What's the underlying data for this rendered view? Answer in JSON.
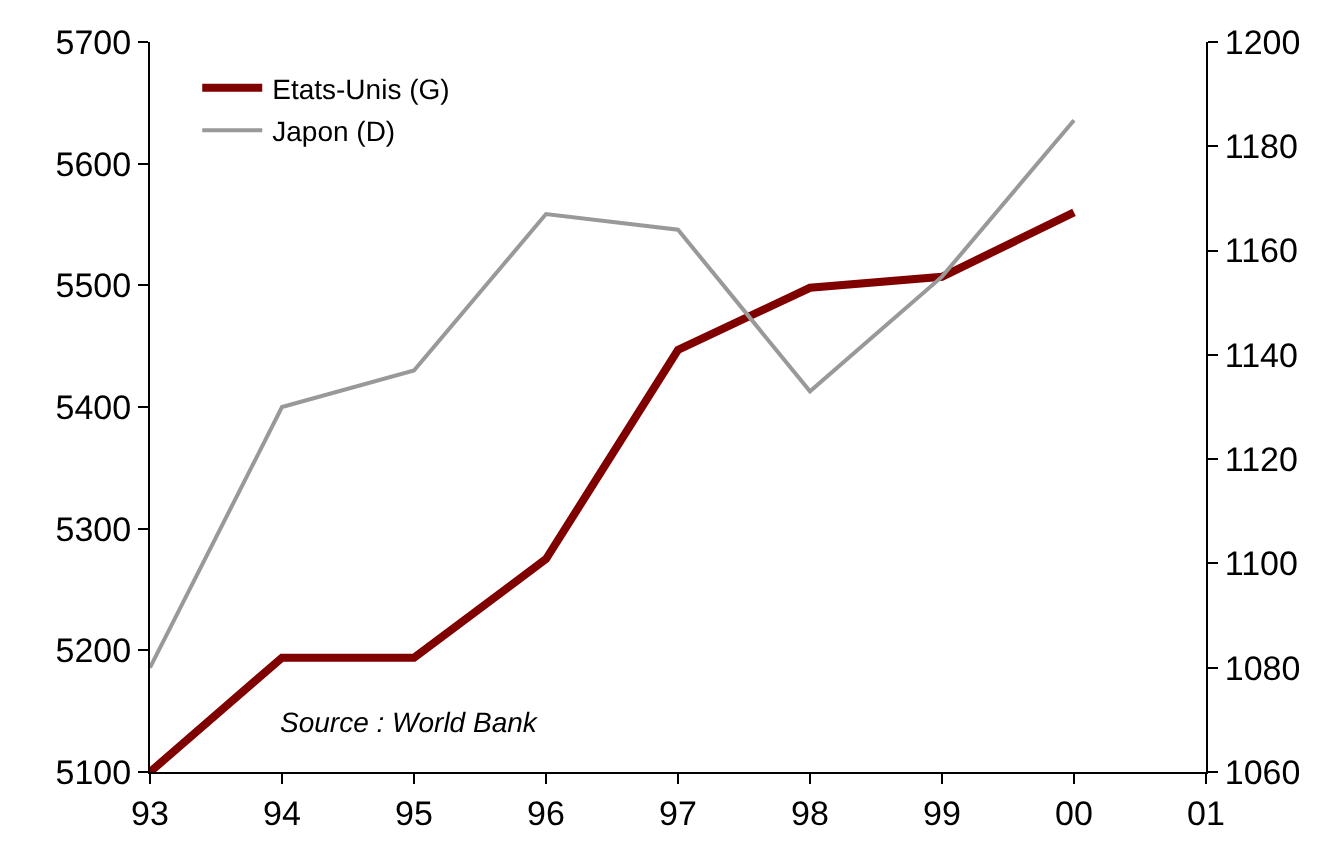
{
  "chart_data": {
    "type": "line",
    "categories": [
      "93",
      "94",
      "95",
      "96",
      "97",
      "98",
      "99",
      "00",
      "01"
    ],
    "series": [
      {
        "name": "Etats-Unis (G)",
        "color": "#800000",
        "values": [
          5100,
          5194,
          5194,
          5275,
          5447,
          5498,
          5507,
          5560,
          null
        ]
      },
      {
        "name": "Japon (D)",
        "color": "#999999",
        "axis": "y2",
        "values": [
          1080,
          1130,
          1137,
          1167,
          1164,
          1133,
          1155,
          1185,
          null
        ]
      }
    ],
    "ylim": [
      5100,
      5700
    ],
    "yticks": [
      5100,
      5200,
      5300,
      5400,
      5500,
      5600,
      5700
    ],
    "y2lim": [
      1060,
      1200
    ],
    "y2ticks": [
      1060,
      1080,
      1100,
      1120,
      1140,
      1160,
      1180,
      1200
    ],
    "annotations": [
      "Source : World Bank"
    ],
    "legend": "top left",
    "marker": "none",
    "line_style": "solid"
  }
}
